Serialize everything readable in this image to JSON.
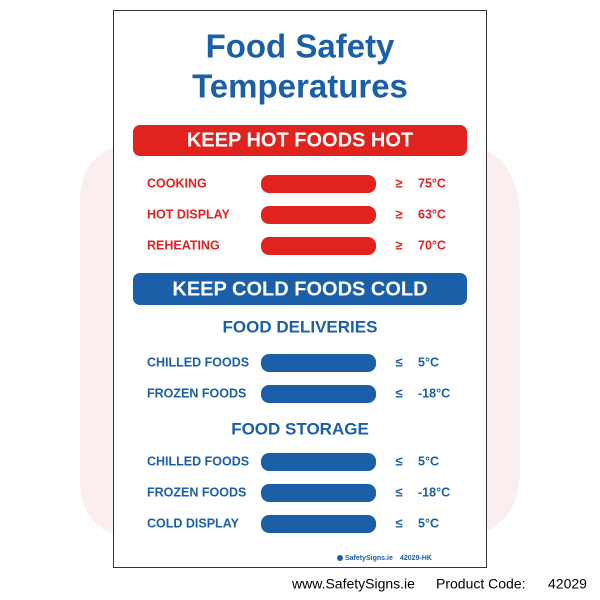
{
  "title": [
    "Food Safety",
    "Temperatures"
  ],
  "hot": {
    "banner": "KEEP HOT FOODS HOT",
    "rows": [
      {
        "label": "COOKING",
        "symbol": "≥",
        "temp": "75°C"
      },
      {
        "label": "HOT DISPLAY",
        "symbol": "≥",
        "temp": "63°C"
      },
      {
        "label": "REHEATING",
        "symbol": "≥",
        "temp": "70°C"
      }
    ]
  },
  "cold": {
    "banner": "KEEP COLD FOODS COLD",
    "groups": [
      {
        "heading": "FOOD DELIVERIES",
        "rows": [
          {
            "label": "CHILLED FOODS",
            "symbol": "≤",
            "temp": "5°C"
          },
          {
            "label": "FROZEN FOODS",
            "symbol": "≤",
            "temp": "-18°C"
          }
        ]
      },
      {
        "heading": "FOOD STORAGE",
        "rows": [
          {
            "label": "CHILLED FOODS",
            "symbol": "≤",
            "temp": "5°C"
          },
          {
            "label": "FROZEN FOODS",
            "symbol": "≤",
            "temp": "-18°C"
          },
          {
            "label": "COLD DISPLAY",
            "symbol": "≤",
            "temp": "5°C"
          }
        ]
      }
    ]
  },
  "sign_footer": {
    "brand": "SafetySigns.ie",
    "code": "42029-HK"
  },
  "caption": {
    "website": "www.SafetySigns.ie",
    "product_code_label": "Product Code:",
    "product_code": "42029"
  }
}
